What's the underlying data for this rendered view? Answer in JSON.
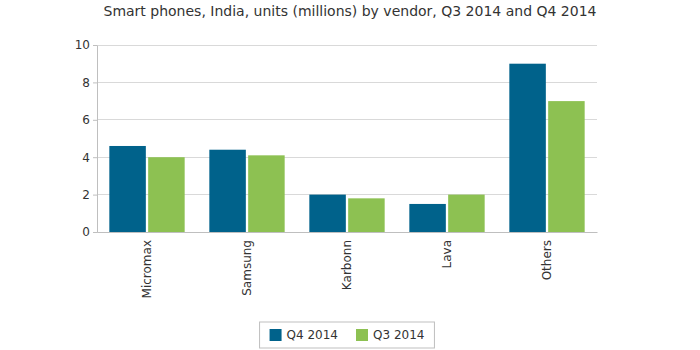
{
  "chart_data": {
    "type": "bar",
    "title": "Smart phones, India, units (millions) by vendor, Q3 2014 and Q4 2014",
    "categories": [
      "Micromax",
      "Samsung",
      "Karbonn",
      "Lava",
      "Others"
    ],
    "series": [
      {
        "name": "Q4 2014",
        "color": "#00628b",
        "values": [
          4.6,
          4.4,
          2.0,
          1.5,
          9.0
        ]
      },
      {
        "name": "Q3 2014",
        "color": "#8dc152",
        "values": [
          4.0,
          4.1,
          1.8,
          2.0,
          7.0
        ]
      }
    ],
    "ylim": [
      0,
      10
    ],
    "yticks": [
      0,
      2,
      4,
      6,
      8,
      10
    ],
    "grid": true,
    "legend": "bottom"
  }
}
